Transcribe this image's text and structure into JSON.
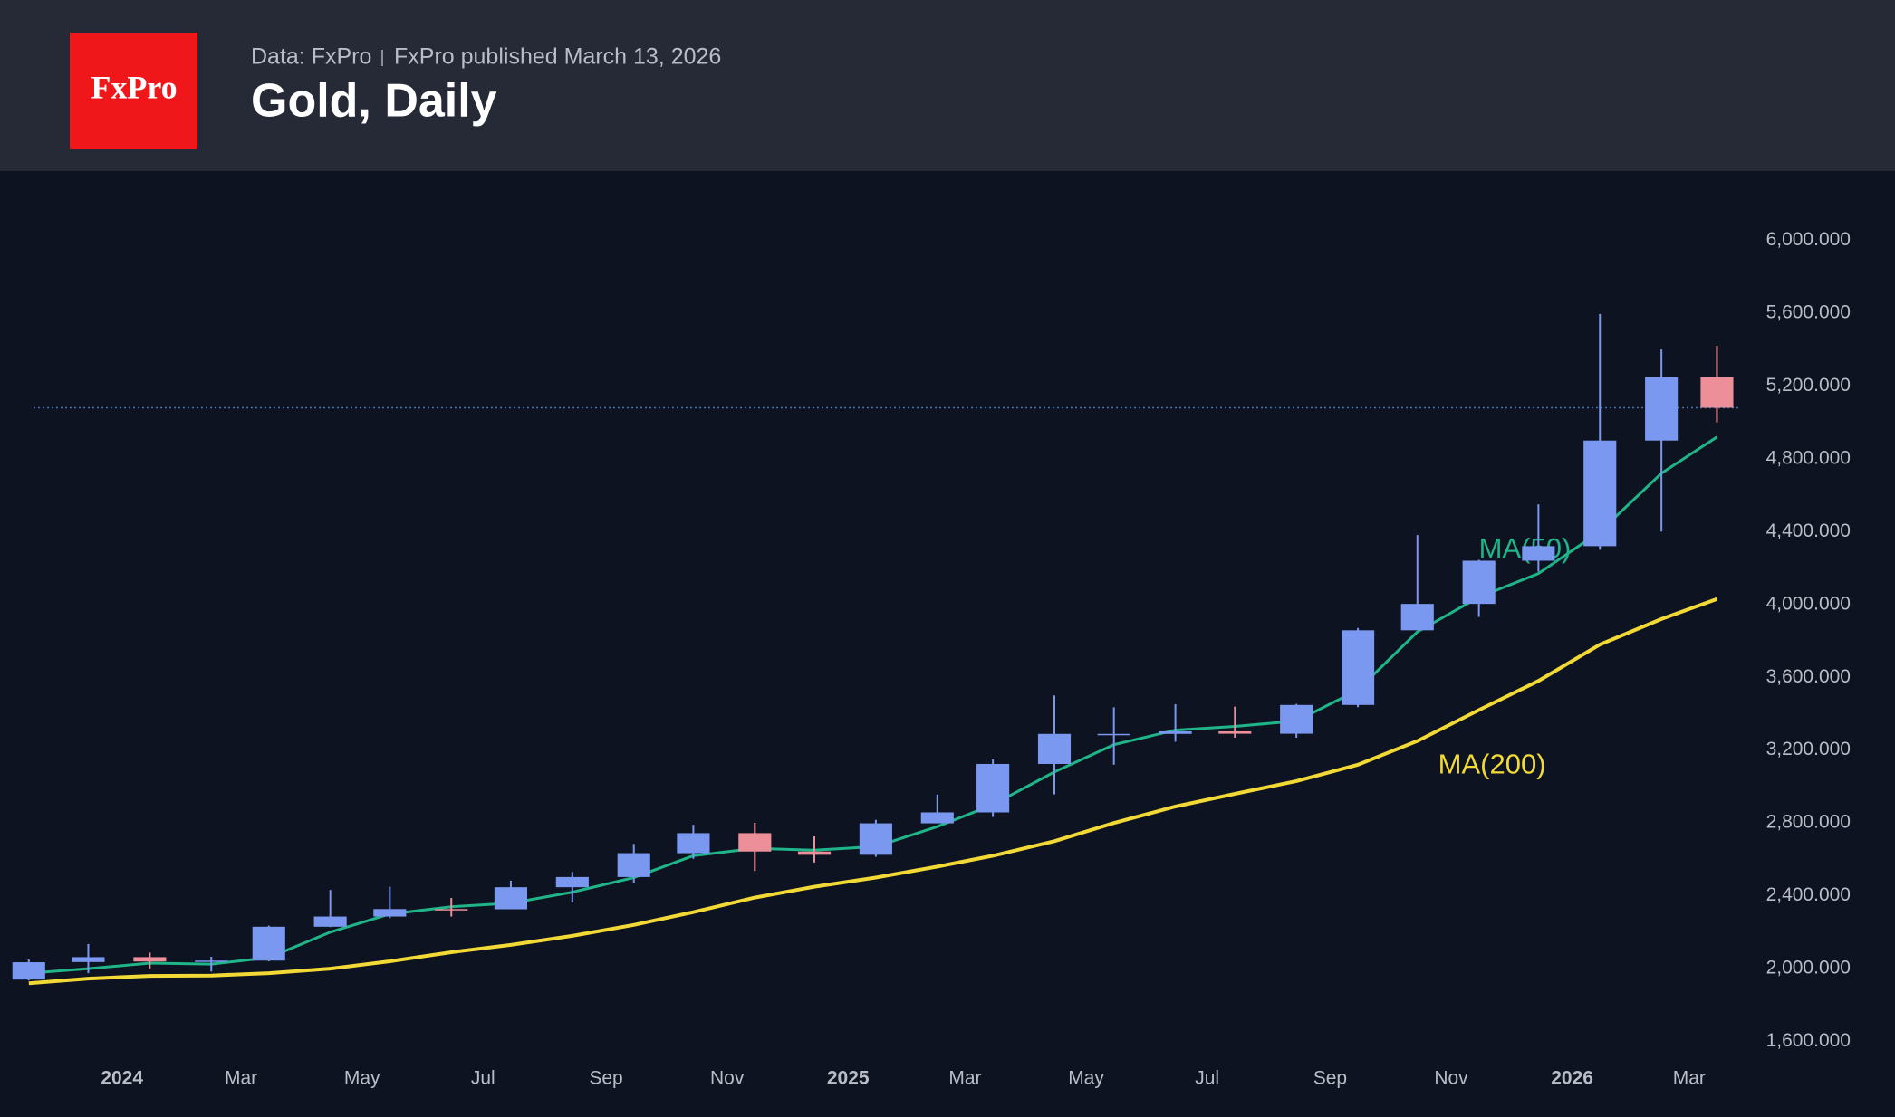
{
  "header": {
    "logo": "FxPro",
    "source": "Data: FxPro",
    "published": "FxPro published March 13, 2026"
  },
  "chart_data": {
    "type": "candlestick",
    "title": "Gold, Daily",
    "x": [
      "2023-11",
      "2023-12",
      "2024-01",
      "2024-02",
      "2024-03",
      "2024-04",
      "2024-05",
      "2024-06",
      "2024-07",
      "2024-08",
      "2024-09",
      "2024-10",
      "2024-11",
      "2024-12",
      "2025-01",
      "2025-02",
      "2025-03",
      "2025-04",
      "2025-05",
      "2025-06",
      "2025-07",
      "2025-08",
      "2025-09",
      "2025-10",
      "2025-11",
      "2025-12",
      "2026-01",
      "2026-02",
      "2026-03"
    ],
    "open": [
      1940,
      2036,
      2063,
      2039,
      2044,
      2230,
      2286,
      2327,
      2326,
      2447,
      2503,
      2634,
      2744,
      2643,
      2625,
      2798,
      2858,
      3124,
      3289,
      3289,
      3303,
      3290,
      3448,
      3858,
      4003,
      4240,
      4320,
      4900,
      5250
    ],
    "high": [
      2050,
      2135,
      2088,
      2065,
      2236,
      2432,
      2450,
      2388,
      2483,
      2531,
      2685,
      2790,
      2801,
      2726,
      2817,
      2956,
      3149,
      3500,
      3435,
      3452,
      3439,
      3454,
      3871,
      4381,
      4245,
      4550,
      5595,
      5400,
      5420
    ],
    "low": [
      1935,
      1975,
      2001,
      1984,
      2040,
      2228,
      2277,
      2286,
      2353,
      2364,
      2472,
      2603,
      2536,
      2583,
      2614,
      2832,
      2833,
      2957,
      3120,
      3246,
      3268,
      3268,
      3436,
      3887,
      3931,
      4180,
      4300,
      4400,
      5000
    ],
    "close": [
      2035,
      2063,
      2039,
      2044,
      2230,
      2286,
      2327,
      2326,
      2447,
      2503,
      2634,
      2744,
      2643,
      2625,
      2798,
      2858,
      3124,
      3289,
      3289,
      3303,
      3290,
      3448,
      3858,
      4003,
      4240,
      4320,
      4900,
      5250,
      5080
    ],
    "up_color": "#7b98f0",
    "down_color": "#ec8f99",
    "lines": [
      {
        "name": "MA(50)",
        "color": "#1fb589",
        "values": [
          1975,
          2000,
          2030,
          2025,
          2060,
          2200,
          2300,
          2340,
          2360,
          2420,
          2500,
          2620,
          2660,
          2650,
          2670,
          2780,
          2900,
          3080,
          3230,
          3310,
          3330,
          3360,
          3530,
          3850,
          4040,
          4170,
          4400,
          4720,
          4920
        ]
      },
      {
        "name": "MA(200)",
        "color": "#f2d935",
        "values": [
          1920,
          1945,
          1960,
          1962,
          1975,
          2000,
          2040,
          2090,
          2130,
          2180,
          2240,
          2310,
          2390,
          2450,
          2500,
          2560,
          2620,
          2700,
          2800,
          2890,
          2960,
          3030,
          3120,
          3250,
          3420,
          3580,
          3780,
          3920,
          4030
        ]
      }
    ],
    "last_price": 5080,
    "ylim": [
      1553,
      6375
    ],
    "yticks": [
      {
        "value": 1600,
        "label": "1,600.000"
      },
      {
        "value": 2000,
        "label": "2,000.000"
      },
      {
        "value": 2400,
        "label": "2,400.000"
      },
      {
        "value": 2800,
        "label": "2,800.000"
      },
      {
        "value": 3200,
        "label": "3,200.000"
      },
      {
        "value": 3600,
        "label": "3,600.000"
      },
      {
        "value": 4000,
        "label": "4,000.000"
      },
      {
        "value": 4400,
        "label": "4,400.000"
      },
      {
        "value": 4800,
        "label": "4,800.000"
      },
      {
        "value": 5200,
        "label": "5,200.000"
      },
      {
        "value": 5600,
        "label": "5,600.000"
      },
      {
        "value": 6000,
        "label": "6,000.000"
      }
    ],
    "xticks": [
      {
        "value": "2024-01",
        "label": "2024"
      },
      {
        "value": "2024-03",
        "label": "Mar"
      },
      {
        "value": "2024-05",
        "label": "May"
      },
      {
        "value": "2024-07",
        "label": "Jul"
      },
      {
        "value": "2024-09",
        "label": "Sep"
      },
      {
        "value": "2024-11",
        "label": "Nov"
      },
      {
        "value": "2025-01",
        "label": "2025"
      },
      {
        "value": "2025-03",
        "label": "Mar"
      },
      {
        "value": "2025-05",
        "label": "May"
      },
      {
        "value": "2025-07",
        "label": "Jul"
      },
      {
        "value": "2025-09",
        "label": "Sep"
      },
      {
        "value": "2025-11",
        "label": "Nov"
      },
      {
        "value": "2026-01",
        "label": "2026"
      },
      {
        "value": "2026-03",
        "label": "Mar"
      }
    ]
  }
}
